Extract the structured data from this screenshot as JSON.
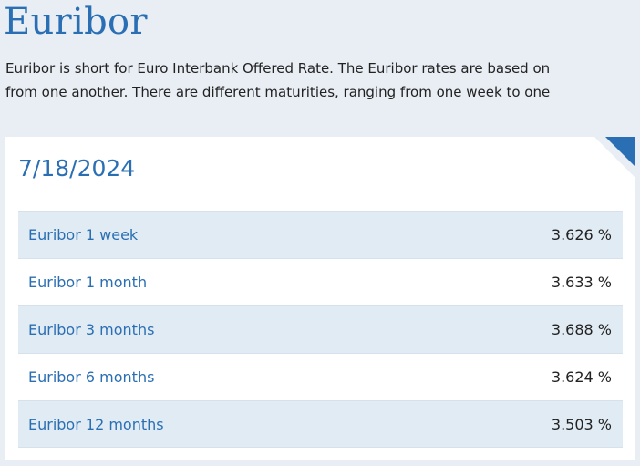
{
  "page": {
    "title": "Euribor",
    "intro_line_1": "Euribor is short for Euro Interbank Offered Rate. The Euribor rates are based on",
    "intro_line_2": "from one another. There are different maturities, ranging from one week to one"
  },
  "card": {
    "date": "7/18/2024",
    "rates": [
      {
        "name": "Euribor 1 week",
        "value": "3.626 %"
      },
      {
        "name": "Euribor 1 month",
        "value": "3.633 %"
      },
      {
        "name": "Euribor 3 months",
        "value": "3.688 %"
      },
      {
        "name": "Euribor 6 months",
        "value": "3.624 %"
      },
      {
        "name": "Euribor 12 months",
        "value": "3.503 %"
      }
    ]
  },
  "colors": {
    "accent": "#2a6fb4",
    "page_background": "#e8eef4",
    "row_stripe": "#e1ebf4",
    "text": "#222222"
  },
  "icons": {
    "card_corner": "corner-fold-icon"
  }
}
